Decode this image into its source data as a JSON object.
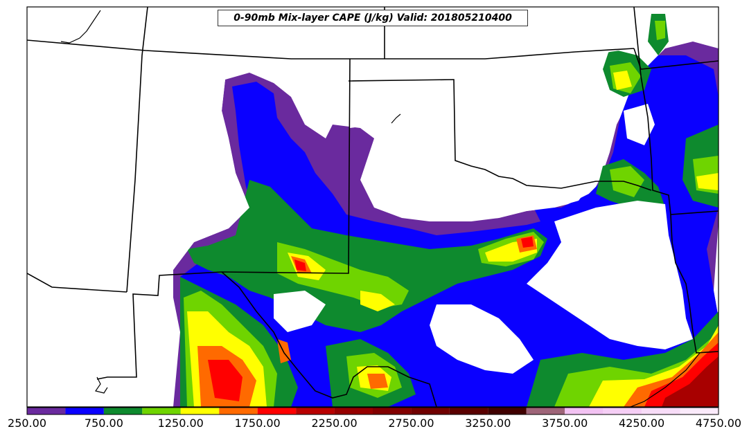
{
  "title": "0-90mb Mix-layer CAPE (J/kg) Valid: 201805210400",
  "colorbar": {
    "tick_labels": [
      "250.00",
      "750.00",
      "1250.00",
      "1750.00",
      "2250.00",
      "2750.00",
      "3250.00",
      "3750.00",
      "4250.00",
      "4750.00"
    ],
    "bins": [
      {
        "min": 250,
        "max": 500,
        "color": "#6a2a9e"
      },
      {
        "min": 500,
        "max": 750,
        "color": "#0a00ff"
      },
      {
        "min": 750,
        "max": 1000,
        "color": "#0e8a2e"
      },
      {
        "min": 1000,
        "max": 1250,
        "color": "#6fd400"
      },
      {
        "min": 1250,
        "max": 1500,
        "color": "#ffff00"
      },
      {
        "min": 1500,
        "max": 1750,
        "color": "#ff6a00"
      },
      {
        "min": 1750,
        "max": 2000,
        "color": "#ff0000"
      },
      {
        "min": 2000,
        "max": 2250,
        "color": "#b80000"
      },
      {
        "min": 2250,
        "max": 2500,
        "color": "#960000"
      },
      {
        "min": 2500,
        "max": 2750,
        "color": "#820000"
      },
      {
        "min": 2750,
        "max": 3000,
        "color": "#700000"
      },
      {
        "min": 3000,
        "max": 3250,
        "color": "#5a0000"
      },
      {
        "min": 3250,
        "max": 3500,
        "color": "#400000"
      },
      {
        "min": 3500,
        "max": 3750,
        "color": "#9e6478"
      },
      {
        "min": 3750,
        "max": 4000,
        "color": "#f2c2f2"
      },
      {
        "min": 4000,
        "max": 4250,
        "color": "#f5cef5"
      },
      {
        "min": 4250,
        "max": 4500,
        "color": "#f7dcf7"
      },
      {
        "min": 4500,
        "max": 4750,
        "color": "#faeafa"
      }
    ]
  },
  "colors": {
    "purple": "#6a2a9e",
    "blue": "#0a00ff",
    "dark_green": "#0e8a2e",
    "light_green": "#6fd400",
    "yellow": "#ffff00",
    "orange": "#ff6a00",
    "red": "#ff0000",
    "dark_red": "#a80000"
  }
}
